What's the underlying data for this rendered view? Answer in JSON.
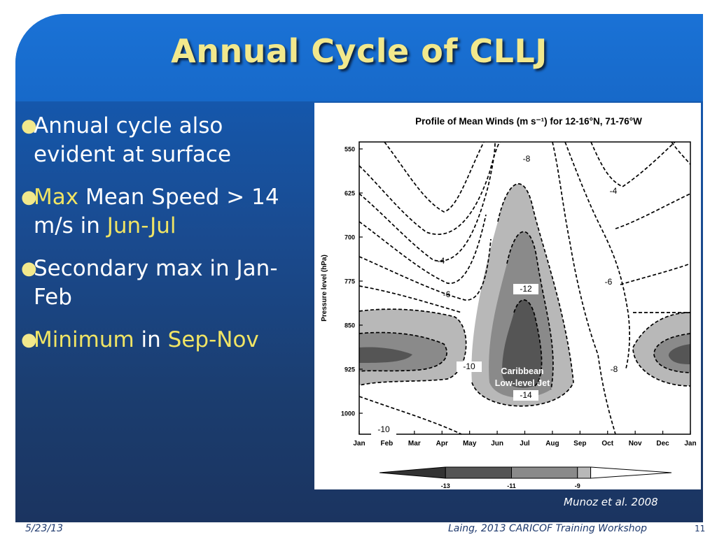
{
  "slide": {
    "title": "Annual Cycle of CLLJ",
    "bullets": [
      {
        "parts": [
          {
            "text": "Annual cycle also evident at surface",
            "highlight": false
          }
        ]
      },
      {
        "parts": [
          {
            "text": "Max",
            "highlight": true
          },
          {
            "text": " Mean Speed > 14 m/s in ",
            "highlight": false
          },
          {
            "text": "Jun-Jul",
            "highlight": true
          }
        ]
      },
      {
        "parts": [
          {
            "text": "Secondary max in Jan-Feb",
            "highlight": false
          }
        ]
      },
      {
        "parts": [
          {
            "text": "Minimum",
            "highlight": true
          },
          {
            "text": " in ",
            "highlight": false
          },
          {
            "text": "Sep-Nov",
            "highlight": true
          }
        ]
      }
    ],
    "citation": "Munoz et al. 2008",
    "footer": {
      "date": "5/23/13",
      "title": "Laing, 2013 CARICOF Training Workshop",
      "page": "11"
    }
  },
  "colors": {
    "title": "#f2e88c",
    "highlight": "#f0e464",
    "body_text": "#ffffff",
    "background_top": "#1766c6",
    "background_bottom": "#1b3460"
  },
  "chart_data": {
    "type": "contour",
    "title": "Profile of Mean Winds (m s⁻¹) for 12-16°N, 71-76°W",
    "xlabel": "",
    "ylabel": "Pressure level (hPa)",
    "x": [
      "Jan",
      "Feb",
      "Mar",
      "Apr",
      "May",
      "Jun",
      "Jul",
      "Aug",
      "Sep",
      "Oct",
      "Nov",
      "Dec",
      "Jan"
    ],
    "y": [
      550,
      625,
      700,
      775,
      850,
      925,
      1000
    ],
    "y_axis_inverted": true,
    "contour_labels": [
      "-4",
      "-4",
      "-6",
      "-6",
      "-8",
      "-8",
      "-10",
      "-10",
      "-12",
      "-14"
    ],
    "annotations": [
      "Caribbean",
      "Low-level Jet"
    ],
    "shading": {
      "thresholds": [
        -13,
        -11,
        -9
      ],
      "colors": [
        "#555555",
        "#8a8a8a",
        "#b8b8b8"
      ]
    },
    "colorbar_labels": [
      "-13",
      "-11",
      "-9"
    ]
  }
}
